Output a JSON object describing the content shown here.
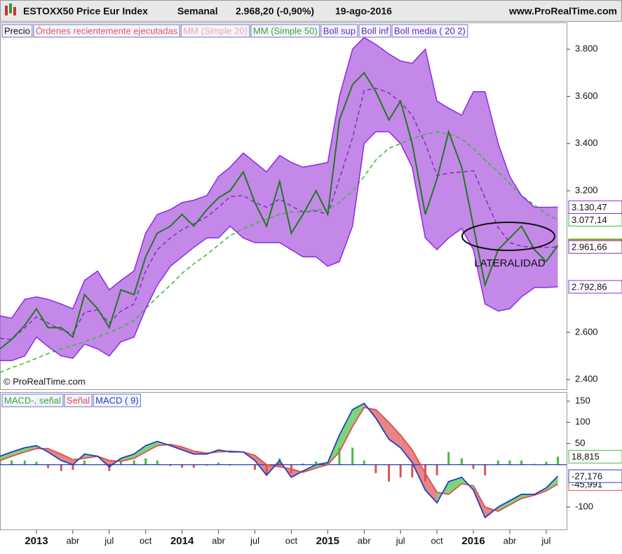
{
  "chart_data": [
    {
      "type": "line",
      "title": "ESTOXX50 Price Eur Index",
      "period": "Semanal",
      "quote": "2.968,20 (-0,90%)",
      "date": "19-ago-2016",
      "source": "www.ProRealTime.com",
      "watermark": "© ProRealTime.com",
      "annotation": "LATERALIDAD",
      "legend_extra": [
        {
          "name": "Órdenes recientemente ejecutadas",
          "color": "#e05a5a"
        },
        {
          "name": "MM (Simple 20)",
          "color": "#f2a6a6"
        }
      ],
      "x": [
        2012.75,
        2012.83,
        2012.92,
        2013,
        2013.08,
        2013.17,
        2013.25,
        2013.33,
        2013.42,
        2013.5,
        2013.58,
        2013.67,
        2013.75,
        2013.83,
        2013.92,
        2014,
        2014.08,
        2014.17,
        2014.25,
        2014.33,
        2014.42,
        2014.5,
        2014.58,
        2014.67,
        2014.75,
        2014.83,
        2014.92,
        2015,
        2015.08,
        2015.17,
        2015.25,
        2015.33,
        2015.42,
        2015.5,
        2015.58,
        2015.67,
        2015.75,
        2015.83,
        2015.92,
        2016,
        2016.08,
        2016.17,
        2016.25,
        2016.33,
        2016.42,
        2016.5,
        2016.58
      ],
      "xlim": [
        2012.75,
        2016.64
      ],
      "ylim": [
        2359,
        3845
      ],
      "yticks": [
        {
          "value": 3800,
          "label": "3.800"
        },
        {
          "value": 3600,
          "label": "3.600"
        },
        {
          "value": 3400,
          "label": "3.400"
        },
        {
          "value": 3200,
          "label": "3.200"
        },
        {
          "value": 2600,
          "label": "2.600"
        },
        {
          "value": 2400,
          "label": "2.400"
        }
      ],
      "series": [
        {
          "name": "Precio",
          "color": "#1f7a1f",
          "end_label": "2.968,20",
          "values": [
            2530,
            2570,
            2630,
            2700,
            2620,
            2620,
            2580,
            2760,
            2700,
            2620,
            2780,
            2760,
            2920,
            3020,
            3050,
            3100,
            3050,
            3120,
            3170,
            3200,
            3280,
            3150,
            3050,
            3240,
            3020,
            3100,
            3200,
            3100,
            3500,
            3650,
            3700,
            3620,
            3500,
            3580,
            3400,
            3100,
            3250,
            3450,
            3300,
            3050,
            2800,
            2950,
            3000,
            3050,
            2950,
            2900,
            2968.2
          ]
        },
        {
          "name": "MM (Simple 50)",
          "color": "#33bb33",
          "dash": true,
          "end_label": "3.077,14",
          "values": [
            2430,
            2450,
            2470,
            2490,
            2510,
            2530,
            2545,
            2560,
            2580,
            2600,
            2620,
            2650,
            2700,
            2750,
            2800,
            2850,
            2890,
            2930,
            2970,
            3010,
            3040,
            3060,
            3080,
            3100,
            3110,
            3110,
            3120,
            3120,
            3150,
            3200,
            3260,
            3330,
            3380,
            3400,
            3420,
            3440,
            3450,
            3440,
            3420,
            3380,
            3330,
            3280,
            3230,
            3180,
            3140,
            3100,
            3077.14
          ]
        },
        {
          "name": "Boll sup",
          "color": "#8a2be2",
          "end_label": "3.130,47",
          "values": [
            2670,
            2660,
            2740,
            2750,
            2740,
            2720,
            2700,
            2820,
            2860,
            2780,
            2820,
            2860,
            3020,
            3100,
            3120,
            3150,
            3160,
            3180,
            3260,
            3300,
            3360,
            3320,
            3280,
            3350,
            3320,
            3300,
            3310,
            3320,
            3600,
            3800,
            3850,
            3820,
            3780,
            3750,
            3740,
            3800,
            3580,
            3550,
            3520,
            3620,
            3620,
            3400,
            3260,
            3180,
            3130,
            3130,
            3130.47
          ]
        },
        {
          "name": "Boll inf",
          "color": "#8a2be2",
          "end_label": "2.792,86",
          "values": [
            2480,
            2480,
            2500,
            2580,
            2540,
            2500,
            2490,
            2550,
            2530,
            2500,
            2560,
            2580,
            2700,
            2800,
            2880,
            2920,
            2960,
            3000,
            3000,
            3050,
            3000,
            2980,
            2980,
            2980,
            2950,
            2920,
            2920,
            2880,
            2900,
            3050,
            3400,
            3450,
            3450,
            3400,
            3300,
            3000,
            2950,
            3000,
            3040,
            2950,
            2720,
            2690,
            2700,
            2750,
            2790,
            2790,
            2792.86
          ]
        },
        {
          "name": "Boll media ( 20 2)",
          "color": "#7b2fbe",
          "dash": true,
          "end_label": "2.961,66",
          "values": [
            2575,
            2570,
            2620,
            2665,
            2640,
            2610,
            2595,
            2685,
            2695,
            2640,
            2690,
            2720,
            2860,
            2950,
            3000,
            3035,
            3060,
            3090,
            3130,
            3175,
            3180,
            3150,
            3130,
            3165,
            3135,
            3110,
            3115,
            3100,
            3250,
            3425,
            3625,
            3635,
            3615,
            3575,
            3520,
            3400,
            3265,
            3275,
            3280,
            3285,
            3170,
            3045,
            2980,
            2965,
            2960,
            2960,
            2961.66
          ]
        }
      ]
    },
    {
      "type": "macd",
      "x": [
        2012.75,
        2012.83,
        2012.92,
        2013,
        2013.08,
        2013.17,
        2013.25,
        2013.33,
        2013.42,
        2013.5,
        2013.58,
        2013.67,
        2013.75,
        2013.83,
        2013.92,
        2014,
        2014.08,
        2014.17,
        2014.25,
        2014.33,
        2014.42,
        2014.5,
        2014.58,
        2014.67,
        2014.75,
        2014.83,
        2014.92,
        2015,
        2015.08,
        2015.17,
        2015.25,
        2015.33,
        2015.42,
        2015.5,
        2015.58,
        2015.67,
        2015.75,
        2015.83,
        2015.92,
        2016,
        2016.08,
        2016.17,
        2016.25,
        2016.33,
        2016.42,
        2016.5,
        2016.58
      ],
      "xlim": [
        2012.75,
        2016.64
      ],
      "xticks": [
        {
          "value": 2013,
          "label": "2013"
        },
        {
          "value": 2013.25,
          "label": "abr"
        },
        {
          "value": 2013.5,
          "label": "jul"
        },
        {
          "value": 2013.75,
          "label": "oct"
        },
        {
          "value": 2014,
          "label": "2014"
        },
        {
          "value": 2014.25,
          "label": "abr"
        },
        {
          "value": 2014.5,
          "label": "jul"
        },
        {
          "value": 2014.75,
          "label": "oct"
        },
        {
          "value": 2015,
          "label": "2015"
        },
        {
          "value": 2015.25,
          "label": "abr"
        },
        {
          "value": 2015.5,
          "label": "jul"
        },
        {
          "value": 2015.75,
          "label": "oct"
        },
        {
          "value": 2016,
          "label": "2016"
        },
        {
          "value": 2016.25,
          "label": "abr"
        },
        {
          "value": 2016.5,
          "label": "jul"
        }
      ],
      "ylim": [
        -153,
        170
      ],
      "yticks": [
        150,
        100,
        50,
        -100
      ],
      "series": [
        {
          "name": "MACD-, señal",
          "color": "#44bb44",
          "negative_color": "#e05050",
          "kind": "histogram",
          "end_label": "18,815",
          "values": [
            10,
            10,
            10,
            7,
            -8,
            -15,
            -12,
            10,
            0,
            -15,
            7,
            10,
            15,
            10,
            -3,
            -7,
            -7,
            -2,
            5,
            -2,
            0,
            -12,
            -25,
            15,
            -20,
            3,
            8,
            5,
            40,
            40,
            10,
            -20,
            -40,
            -30,
            -30,
            -40,
            -25,
            30,
            15,
            -10,
            -25,
            10,
            10,
            10,
            2,
            7,
            18.815
          ]
        },
        {
          "name": "Señal",
          "color": "#e05050",
          "end_label": "-45,991",
          "values": [
            10,
            20,
            30,
            38,
            38,
            25,
            12,
            15,
            20,
            10,
            8,
            15,
            30,
            45,
            48,
            42,
            32,
            27,
            30,
            32,
            30,
            22,
            0,
            -5,
            -10,
            -18,
            -8,
            0,
            30,
            90,
            135,
            130,
            100,
            70,
            35,
            -20,
            -65,
            -70,
            -45,
            -50,
            -100,
            -110,
            -95,
            -80,
            -72,
            -62,
            -45.991
          ]
        },
        {
          "name": "MACD ( 9)",
          "color": "#2040c0",
          "end_label": "-27,176",
          "values": [
            20,
            30,
            40,
            45,
            30,
            10,
            0,
            25,
            20,
            -5,
            15,
            25,
            45,
            55,
            45,
            35,
            25,
            25,
            35,
            30,
            30,
            10,
            -25,
            10,
            -30,
            -15,
            0,
            5,
            70,
            130,
            145,
            110,
            60,
            40,
            5,
            -60,
            -90,
            -40,
            -30,
            -60,
            -125,
            -100,
            -85,
            -70,
            -70,
            -55,
            -27.176
          ]
        }
      ]
    }
  ]
}
